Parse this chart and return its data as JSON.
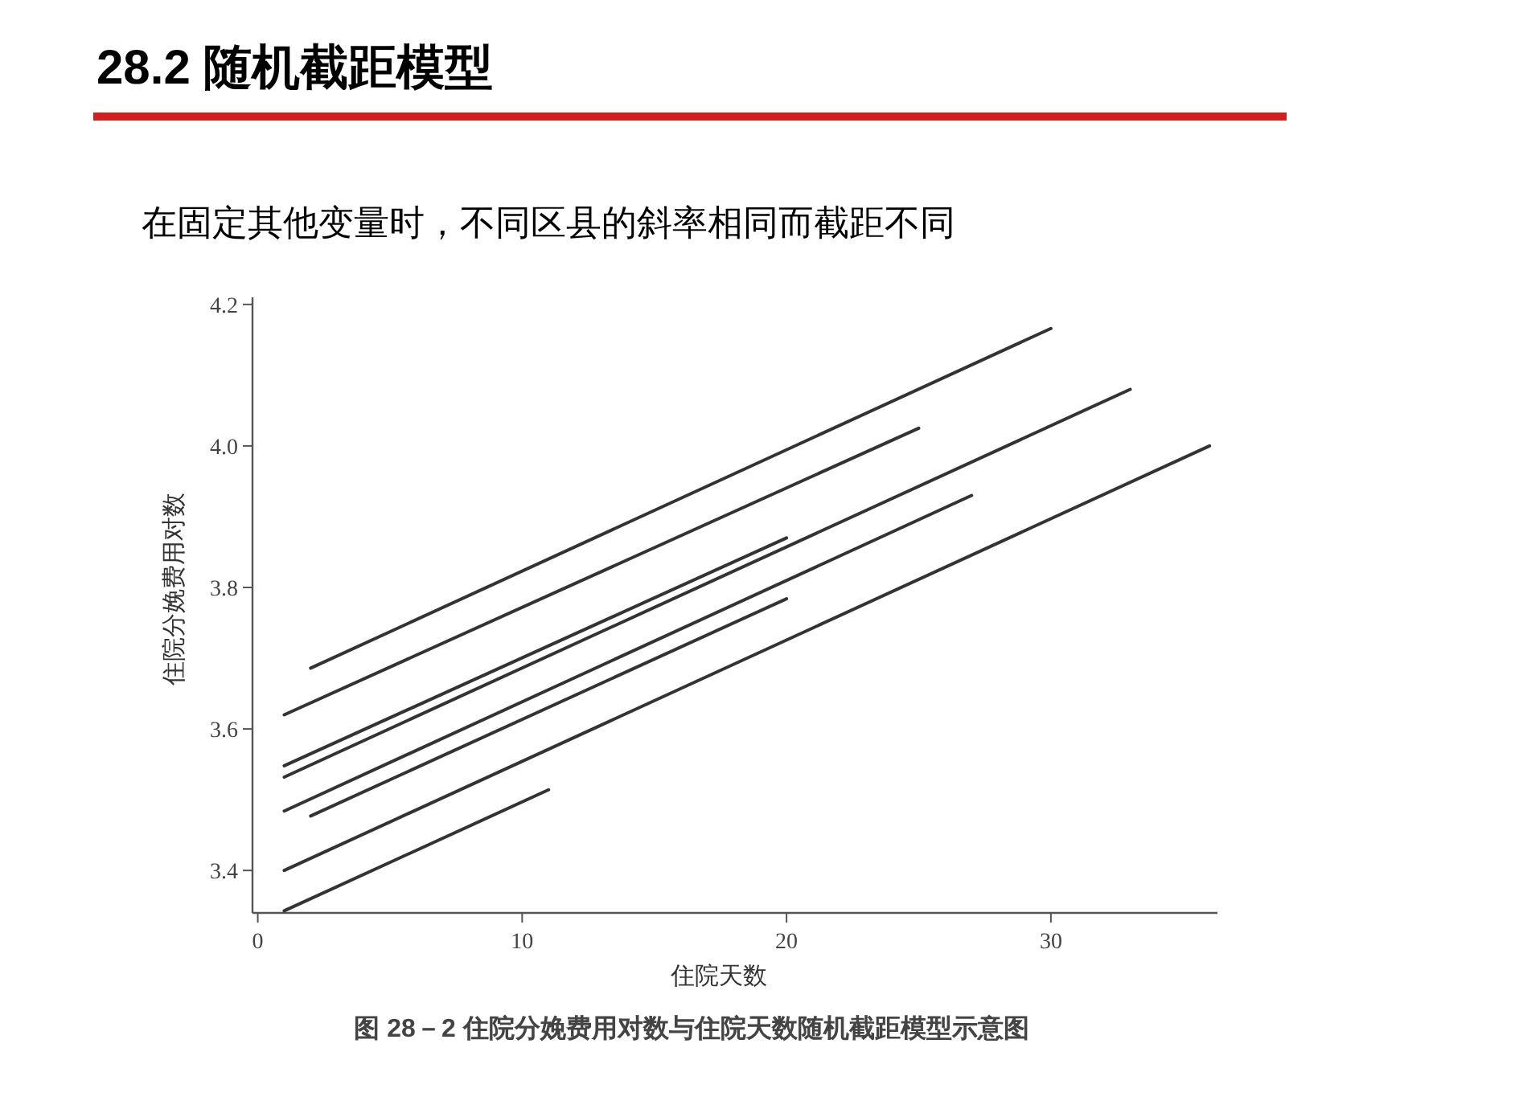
{
  "chart_data": {
    "type": "line",
    "title": "28.2 随机截距模型",
    "subtitle": "在固定其他变量时，不同区县的斜率相同而截距不同",
    "xlabel": "住院天数",
    "ylabel": "住院分娩费用对数",
    "annotations": [
      "图 28－2 住院分娩费用对数与住院天数随机截距模型示意图"
    ],
    "xlim": [
      -0.2,
      36.3
    ],
    "ylim": [
      3.34,
      4.21
    ],
    "xticks": [
      0,
      10,
      20,
      30
    ],
    "yticks": [
      {
        "value": 3.4,
        "label": "3.4"
      },
      {
        "value": 3.6,
        "label": "3.6"
      },
      {
        "value": 3.8,
        "label": "3.8"
      },
      {
        "value": 4.0,
        "label": "4.0"
      },
      {
        "value": 4.2,
        "label": "4.2"
      }
    ],
    "marker": "none",
    "line_style": "solid",
    "series": [
      {
        "color": "#333333",
        "x": [
          2,
          30
        ],
        "values": [
          3.686,
          4.166
        ]
      },
      {
        "color": "#333333",
        "x": [
          1,
          25
        ],
        "values": [
          3.62,
          4.025
        ]
      },
      {
        "color": "#333333",
        "x": [
          1,
          20
        ],
        "values": [
          3.548,
          3.87
        ]
      },
      {
        "color": "#333333",
        "x": [
          1,
          33
        ],
        "values": [
          3.532,
          4.08
        ]
      },
      {
        "color": "#333333",
        "x": [
          1,
          27
        ],
        "values": [
          3.484,
          3.93
        ]
      },
      {
        "color": "#333333",
        "x": [
          2,
          20
        ],
        "values": [
          3.477,
          3.784
        ]
      },
      {
        "color": "#333333",
        "x": [
          1,
          36
        ],
        "values": [
          3.4,
          4.0
        ]
      },
      {
        "color": "#333333",
        "x": [
          1,
          11
        ],
        "values": [
          3.343,
          3.514
        ]
      }
    ]
  }
}
